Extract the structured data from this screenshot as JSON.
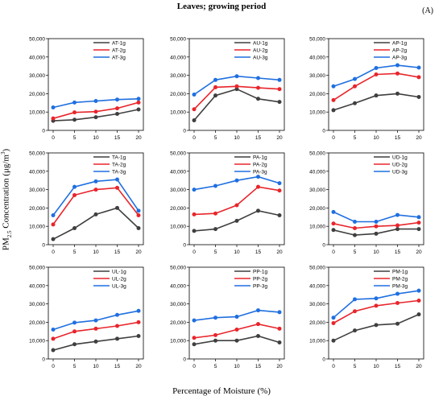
{
  "figure": {
    "title": "Leaves; growing period",
    "panel_tag": "(A)",
    "xlabel": "Percentage of Moisture (%)",
    "ylabel_prefix": "PM",
    "ylabel_sub": "2.5",
    "ylabel_middle": " Concentration (μg/m",
    "ylabel_sup": "3",
    "ylabel_suffix": ")",
    "series_colors": [
      "#3f3f3f",
      "#e8252b",
      "#1f6fe0"
    ]
  },
  "chart_data": [
    {
      "type": "line",
      "x": [
        0,
        5,
        10,
        15,
        20
      ],
      "xticks": [
        "0",
        "5",
        "10",
        "15",
        "20"
      ],
      "ylim": [
        0,
        50000
      ],
      "yticks": [
        "0",
        "10,000",
        "20,000",
        "30,000",
        "40,000",
        "50,000"
      ],
      "series": [
        {
          "name": "AT-1g",
          "values": [
            5200,
            5800,
            7200,
            9000,
            11400
          ]
        },
        {
          "name": "AT-2g",
          "values": [
            6500,
            9800,
            10200,
            12000,
            15200
          ]
        },
        {
          "name": "AT-3g",
          "values": [
            12500,
            15200,
            16000,
            16800,
            17200
          ]
        }
      ]
    },
    {
      "type": "line",
      "x": [
        0,
        5,
        10,
        15,
        20
      ],
      "xticks": [
        "0",
        "5",
        "10",
        "15",
        "20"
      ],
      "ylim": [
        0,
        50000
      ],
      "yticks": [
        "0",
        "10,000",
        "20,000",
        "30,000",
        "40,000",
        "50,000"
      ],
      "series": [
        {
          "name": "AU-1g",
          "values": [
            5500,
            19000,
            22500,
            17200,
            15500
          ]
        },
        {
          "name": "AU-2g",
          "values": [
            11500,
            23500,
            24000,
            23200,
            22500
          ]
        },
        {
          "name": "AU-3g",
          "values": [
            19500,
            27500,
            29500,
            28500,
            27500
          ]
        }
      ]
    },
    {
      "type": "line",
      "x": [
        0,
        5,
        10,
        15,
        20
      ],
      "xticks": [
        "0",
        "5",
        "10",
        "15",
        "20"
      ],
      "ylim": [
        0,
        50000
      ],
      "yticks": [
        "0",
        "10,000",
        "20,000",
        "30,000",
        "40,000",
        "50,000"
      ],
      "series": [
        {
          "name": "AP-1g",
          "values": [
            11000,
            14800,
            19000,
            20000,
            18200
          ]
        },
        {
          "name": "AP-2g",
          "values": [
            16500,
            24000,
            30500,
            31000,
            29000
          ]
        },
        {
          "name": "AP-3g",
          "values": [
            24000,
            28000,
            34000,
            35500,
            34200
          ]
        }
      ]
    },
    {
      "type": "line",
      "x": [
        0,
        5,
        10,
        15,
        20
      ],
      "xticks": [
        "0",
        "5",
        "10",
        "15",
        "20"
      ],
      "ylim": [
        0,
        50000
      ],
      "yticks": [
        "0",
        "10,000",
        "20,000",
        "30,000",
        "40,000",
        "50,000"
      ],
      "series": [
        {
          "name": "TA-1g",
          "values": [
            3000,
            9000,
            16500,
            20000,
            9000
          ]
        },
        {
          "name": "TA-2g",
          "values": [
            11000,
            27000,
            30000,
            31000,
            16000
          ]
        },
        {
          "name": "TA-3g",
          "values": [
            16000,
            31500,
            34500,
            35500,
            18500
          ]
        }
      ]
    },
    {
      "type": "line",
      "x": [
        0,
        5,
        10,
        15,
        20
      ],
      "xticks": [
        "0",
        "5",
        "10",
        "15",
        "20"
      ],
      "ylim": [
        0,
        50000
      ],
      "yticks": [
        "0",
        "10,000",
        "20,000",
        "30,000",
        "40,000",
        "50,000"
      ],
      "series": [
        {
          "name": "PA-1g",
          "values": [
            7500,
            8500,
            13000,
            18500,
            16000
          ]
        },
        {
          "name": "PA-2g",
          "values": [
            16500,
            17000,
            21500,
            31500,
            29500
          ]
        },
        {
          "name": "PA-3g",
          "values": [
            30000,
            32000,
            35000,
            37000,
            33500
          ]
        }
      ]
    },
    {
      "type": "line",
      "x": [
        0,
        5,
        10,
        15,
        20
      ],
      "xticks": [
        "0",
        "5",
        "10",
        "15",
        "20"
      ],
      "ylim": [
        0,
        50000
      ],
      "yticks": [
        "0",
        "10,000",
        "20,000",
        "30,000",
        "40,000",
        "50,000"
      ],
      "series": [
        {
          "name": "UD-1g",
          "values": [
            8000,
            5200,
            6000,
            8500,
            8500
          ]
        },
        {
          "name": "UD-2g",
          "values": [
            11500,
            9000,
            10000,
            10500,
            12000
          ]
        },
        {
          "name": "UD-3g",
          "values": [
            17800,
            12500,
            12500,
            16200,
            15000
          ]
        }
      ]
    },
    {
      "type": "line",
      "x": [
        0,
        5,
        10,
        15,
        20
      ],
      "xticks": [
        "0",
        "5",
        "10",
        "15",
        "20"
      ],
      "ylim": [
        0,
        50000
      ],
      "yticks": [
        "0",
        "10,000",
        "20,000",
        "30,000",
        "40,000",
        "50,000"
      ],
      "series": [
        {
          "name": "UL-1g",
          "values": [
            4800,
            8000,
            9500,
            11000,
            12500
          ]
        },
        {
          "name": "UL-2g",
          "values": [
            11000,
            15000,
            16500,
            18000,
            20000
          ]
        },
        {
          "name": "UL-3g",
          "values": [
            16000,
            19800,
            21000,
            24000,
            26200
          ]
        }
      ]
    },
    {
      "type": "line",
      "x": [
        0,
        5,
        10,
        15,
        20
      ],
      "xticks": [
        "0",
        "5",
        "10",
        "15",
        "20"
      ],
      "ylim": [
        0,
        50000
      ],
      "yticks": [
        "0",
        "10,000",
        "20,000",
        "30,000",
        "40,000",
        "50,000"
      ],
      "series": [
        {
          "name": "PP-1g",
          "values": [
            8000,
            10000,
            10000,
            12500,
            9000
          ]
        },
        {
          "name": "PP-2g",
          "values": [
            11500,
            13000,
            16000,
            19000,
            16500
          ]
        },
        {
          "name": "PP-3g",
          "values": [
            21000,
            22500,
            23000,
            26500,
            25500
          ]
        }
      ]
    },
    {
      "type": "line",
      "x": [
        0,
        5,
        10,
        15,
        20
      ],
      "xticks": [
        "0",
        "5",
        "10",
        "15",
        "20"
      ],
      "ylim": [
        0,
        50000
      ],
      "yticks": [
        "0",
        "10,000",
        "20,000",
        "30,000",
        "40,000",
        "50,000"
      ],
      "series": [
        {
          "name": "PM-1g",
          "values": [
            10000,
            15500,
            18500,
            19200,
            24300
          ]
        },
        {
          "name": "PM-2g",
          "values": [
            19500,
            26000,
            29000,
            30500,
            31800
          ]
        },
        {
          "name": "PM-3g",
          "values": [
            22500,
            32500,
            33000,
            35500,
            37200
          ]
        }
      ]
    }
  ]
}
